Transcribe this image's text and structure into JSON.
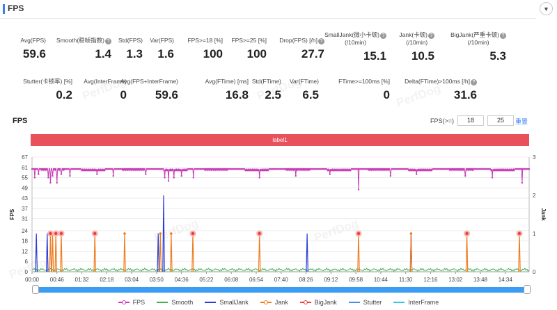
{
  "header": {
    "title": "FPS",
    "collapse_icon": "chevron-down-icon"
  },
  "metrics_row1": [
    {
      "label": "Avg(FPS)",
      "value": "59.6",
      "help": false
    },
    {
      "label": "Smooth(稳帧指数)",
      "value": "1.4",
      "help": true
    },
    {
      "label": "Std(FPS)",
      "value": "1.3",
      "help": false
    },
    {
      "label": "Var(FPS)",
      "value": "1.6",
      "help": false
    },
    {
      "label": "FPS>=18 [%]",
      "value": "100",
      "help": false
    },
    {
      "label": "FPS>=25 [%]",
      "value": "100",
      "help": false
    },
    {
      "label": "Drop(FPS) [/h]",
      "value": "27.7",
      "help": true
    },
    {
      "label": "SmallJank(微小卡顿)",
      "label2": "(/10min)",
      "value": "15.1",
      "help": true
    },
    {
      "label": "Jank(卡顿)",
      "label2": "(/10min)",
      "value": "10.5",
      "help": true
    },
    {
      "label": "BigJank(严重卡顿)",
      "label2": "(/10min)",
      "value": "5.3",
      "help": true
    }
  ],
  "metrics_row2": [
    {
      "label": "Stutter(卡顿率) [%]",
      "value": "0.2",
      "help": false
    },
    {
      "label": "Avg(InterFrame)",
      "value": "0",
      "help": false
    },
    {
      "label": "Avg(FPS+InterFrame)",
      "value": "59.6",
      "help": false
    },
    {
      "label": "Avg(FTime) [ms]",
      "value": "16.8",
      "help": false
    },
    {
      "label": "Std(FTime)",
      "value": "2.5",
      "help": false
    },
    {
      "label": "Var(FTime)",
      "value": "6.5",
      "help": false
    },
    {
      "label": "FTime>=100ms [%]",
      "value": "0",
      "help": false
    },
    {
      "label": "Delta(FTime)>100ms [/h]",
      "value": "31.6",
      "help": true
    }
  ],
  "watermark": "PerfDog",
  "chart_section": {
    "title": "FPS",
    "filter_label": "FPS(>=)",
    "filter_values": [
      "18",
      "25"
    ],
    "reset_label": "重置",
    "label_bar": "label1"
  },
  "legend": [
    {
      "name": "FPS",
      "color": "#c83cb4",
      "marker": true
    },
    {
      "name": "Smooth",
      "color": "#3cb44b",
      "marker": false
    },
    {
      "name": "SmallJank",
      "color": "#2b3fd6",
      "marker": false
    },
    {
      "name": "Jank",
      "color": "#f07c1e",
      "marker": true
    },
    {
      "name": "BigJank",
      "color": "#e8403a",
      "marker": true
    },
    {
      "name": "Stutter",
      "color": "#4a90e2",
      "marker": false
    },
    {
      "name": "InterFrame",
      "color": "#38c5e8",
      "marker": false
    }
  ],
  "chart_data": {
    "type": "line",
    "x_tick_labels": [
      "00:00",
      "00:46",
      "01:32",
      "02:18",
      "03:04",
      "03:50",
      "04:36",
      "05:22",
      "06:08",
      "06:54",
      "07:40",
      "08:26",
      "09:12",
      "09:58",
      "10:44",
      "11:30",
      "12:16",
      "13:02",
      "13:48",
      "14:34"
    ],
    "x_range_seconds": [
      0,
      918
    ],
    "ylabel_left": "FPS",
    "ylabel_right": "Jank",
    "y_left_ticks": [
      0,
      6,
      12,
      18,
      24,
      31,
      37,
      43,
      49,
      55,
      61,
      67
    ],
    "y_left_range": [
      0,
      67
    ],
    "y_right_ticks": [
      0,
      1,
      2,
      3
    ],
    "y_right_range": [
      0,
      3
    ],
    "series": [
      {
        "name": "FPS",
        "typical_value": 60,
        "dips": [
          {
            "t": 5,
            "v": 55
          },
          {
            "t": 12,
            "v": 57
          },
          {
            "t": 30,
            "v": 55
          },
          {
            "t": 34,
            "v": 52
          },
          {
            "t": 38,
            "v": 56
          },
          {
            "t": 46,
            "v": 52
          },
          {
            "t": 54,
            "v": 57
          },
          {
            "t": 70,
            "v": 56
          },
          {
            "t": 120,
            "v": 57
          },
          {
            "t": 150,
            "v": 56
          },
          {
            "t": 210,
            "v": 57
          },
          {
            "t": 245,
            "v": 55
          },
          {
            "t": 252,
            "v": 53
          },
          {
            "t": 262,
            "v": 55
          },
          {
            "t": 276,
            "v": 56
          },
          {
            "t": 298,
            "v": 55
          },
          {
            "t": 420,
            "v": 55
          },
          {
            "t": 487,
            "v": 56
          },
          {
            "t": 550,
            "v": 57
          },
          {
            "t": 603,
            "v": 48
          },
          {
            "t": 662,
            "v": 56
          },
          {
            "t": 710,
            "v": 57
          },
          {
            "t": 800,
            "v": 56
          },
          {
            "t": 850,
            "v": 55
          },
          {
            "t": 905,
            "v": 52
          }
        ]
      },
      {
        "name": "Smooth",
        "typical_value": 1.5
      },
      {
        "name": "SmallJank",
        "points": [
          {
            "t": 8,
            "v": 1
          },
          {
            "t": 28,
            "v": 1
          },
          {
            "t": 233,
            "v": 1
          },
          {
            "t": 243,
            "v": 2
          },
          {
            "t": 508,
            "v": 1
          },
          {
            "t": 700,
            "v": 1
          }
        ]
      },
      {
        "name": "Jank",
        "points": [
          {
            "t": 34,
            "v": 1
          },
          {
            "t": 38,
            "v": 1
          },
          {
            "t": 44,
            "v": 1
          },
          {
            "t": 54,
            "v": 1
          },
          {
            "t": 116,
            "v": 1
          },
          {
            "t": 171,
            "v": 1
          },
          {
            "t": 237,
            "v": 1
          },
          {
            "t": 257,
            "v": 1
          },
          {
            "t": 297,
            "v": 1
          },
          {
            "t": 420,
            "v": 1
          },
          {
            "t": 603,
            "v": 1
          },
          {
            "t": 700,
            "v": 1
          },
          {
            "t": 803,
            "v": 1
          },
          {
            "t": 900,
            "v": 1
          }
        ]
      },
      {
        "name": "BigJank",
        "points": [
          {
            "t": 34,
            "v": 1
          },
          {
            "t": 44,
            "v": 1
          },
          {
            "t": 54,
            "v": 1
          },
          {
            "t": 116,
            "v": 1
          },
          {
            "t": 297,
            "v": 1
          },
          {
            "t": 420,
            "v": 1
          },
          {
            "t": 603,
            "v": 1
          },
          {
            "t": 803,
            "v": 1
          },
          {
            "t": 900,
            "v": 1
          }
        ]
      },
      {
        "name": "Stutter",
        "points": []
      },
      {
        "name": "InterFrame",
        "points": []
      }
    ],
    "grid": true
  }
}
